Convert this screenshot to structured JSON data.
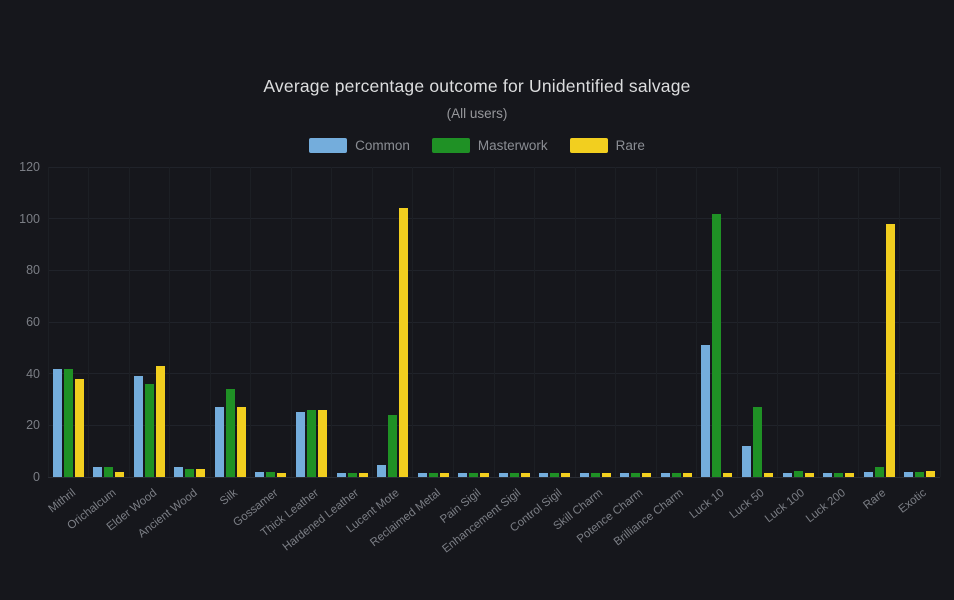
{
  "page": {
    "background_color": "#16171c"
  },
  "chart_data": {
    "type": "bar",
    "title": "Average percentage outcome for Unidentified salvage",
    "subtitle": "(All users)",
    "legend_position": "top",
    "grid": true,
    "ylim": [
      0,
      120
    ],
    "yticks": [
      0,
      20,
      40,
      60,
      80,
      100,
      120
    ],
    "categories": [
      "Mithril",
      "Orichalcum",
      "Elder Wood",
      "Ancient Wood",
      "Silk",
      "Gossamer",
      "Thick Leather",
      "Hardened Leather",
      "Lucent Mote",
      "Reclaimed Metal",
      "Pain Sigil",
      "Enhancement Sigil",
      "Control Sigil",
      "Skill Charm",
      "Potence Charm",
      "Brilliance Charm",
      "Luck 10",
      "Luck 50",
      "Luck 100",
      "Luck 200",
      "Rare",
      "Exotic"
    ],
    "series": [
      {
        "name": "Common",
        "color": "#74addc",
        "values": [
          42,
          4,
          39,
          4,
          27,
          2,
          25,
          1.5,
          4.5,
          1.5,
          1.5,
          1.5,
          1.5,
          1.5,
          1.5,
          1.5,
          51,
          12,
          1.5,
          1.5,
          2,
          2
        ]
      },
      {
        "name": "Masterwork",
        "color": "#1f9125",
        "values": [
          42,
          4,
          36,
          3,
          34,
          2,
          26,
          1.5,
          24,
          1.5,
          1.5,
          1.5,
          1.5,
          1.5,
          1.5,
          1.5,
          102,
          27,
          2.5,
          1.5,
          4,
          2
        ]
      },
      {
        "name": "Rare",
        "color": "#f2cf1f",
        "values": [
          38,
          2,
          43,
          3,
          27,
          1.5,
          26,
          1.5,
          104,
          1.5,
          1.5,
          1.5,
          1.5,
          1.5,
          1.5,
          1.5,
          1.5,
          1.5,
          1.5,
          1.5,
          98,
          2.5
        ]
      }
    ]
  }
}
